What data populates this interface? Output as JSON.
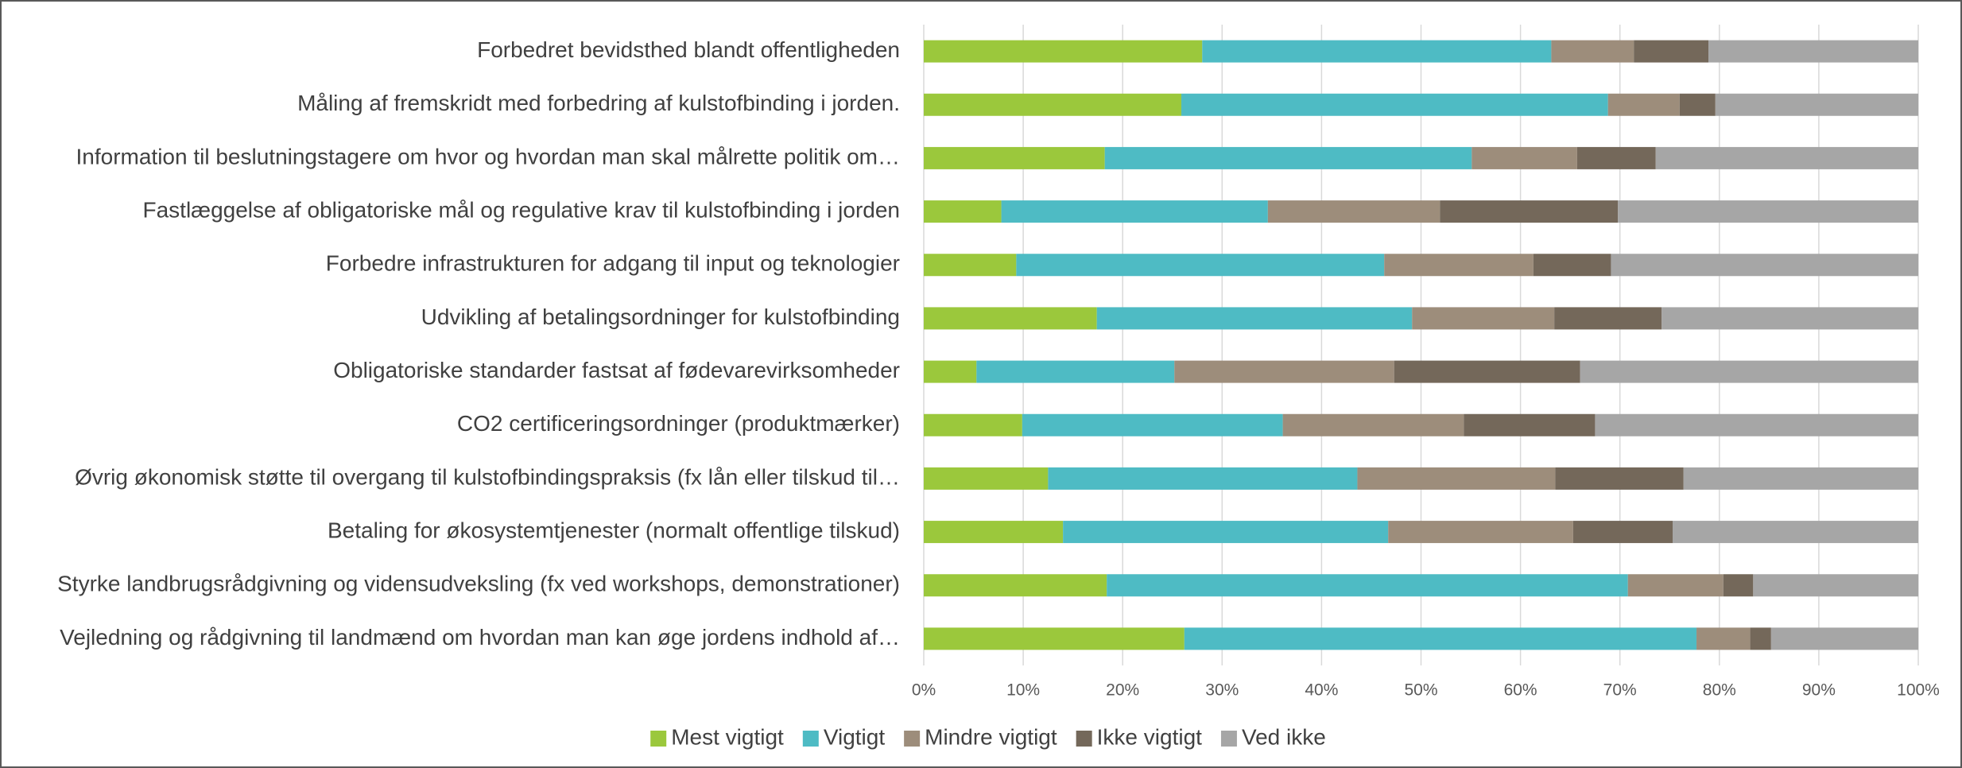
{
  "chart_data": {
    "type": "stacked_bar_horizontal",
    "categories": [
      "Forbedret bevidsthed blandt offentligheden",
      "Måling af fremskridt med forbedring af kulstofbinding i jorden.",
      "Information til beslutningstagere om hvor og hvordan man skal målrette politik om…",
      "Fastlæggelse af obligatoriske mål og regulative krav til kulstofbinding i jorden",
      "Forbedre infrastrukturen for adgang til input og teknologier",
      "Udvikling af betalingsordninger for kulstofbinding",
      "Obligatoriske standarder fastsat af fødevarevirksomheder",
      "CO2 certificeringsordninger (produktmærker)",
      "Øvrig økonomisk støtte til overgang til kulstofbindingspraksis (fx lån eller tilskud til…",
      "Betaling for økosystemtjenester (normalt offentlige tilskud)",
      "Styrke landbrugsrådgivning og vidensudveksling (fx ved workshops, demonstrationer)",
      "Vejledning og rådgivning til landmænd om hvordan man kan øge jordens indhold af…"
    ],
    "series": [
      {
        "name": "Mest vigtigt",
        "color": "#9bc83c",
        "values": [
          28.0,
          25.9,
          18.2,
          7.8,
          9.3,
          17.4,
          5.3,
          9.9,
          12.5,
          14.0,
          18.4,
          26.2
        ]
      },
      {
        "name": "Vigtigt",
        "color": "#4ebbc4",
        "values": [
          35.1,
          42.9,
          36.9,
          26.8,
          37.0,
          31.7,
          19.9,
          26.2,
          31.1,
          32.7,
          52.4,
          51.5
        ]
      },
      {
        "name": "Mindre vigtigt",
        "color": "#9d8d7b",
        "values": [
          8.3,
          7.2,
          10.6,
          17.3,
          15.0,
          14.3,
          22.1,
          18.2,
          19.9,
          18.6,
          9.6,
          5.4
        ]
      },
      {
        "name": "Ikke vigtigt",
        "color": "#74685a",
        "values": [
          7.5,
          3.6,
          7.9,
          17.9,
          7.8,
          10.8,
          18.7,
          13.2,
          12.9,
          10.0,
          3.0,
          2.1
        ]
      },
      {
        "name": "Ved ikke",
        "color": "#a6a6a6",
        "values": [
          21.1,
          20.4,
          26.4,
          30.2,
          30.9,
          25.8,
          34.0,
          32.5,
          23.6,
          24.7,
          16.6,
          14.8
        ]
      }
    ],
    "xlim": [
      0,
      100
    ],
    "xticks": [
      {
        "value": 0,
        "label": "0%"
      },
      {
        "value": 10,
        "label": "10%"
      },
      {
        "value": 20,
        "label": "20%"
      },
      {
        "value": 30,
        "label": "30%"
      },
      {
        "value": 40,
        "label": "40%"
      },
      {
        "value": 50,
        "label": "50%"
      },
      {
        "value": 60,
        "label": "60%"
      },
      {
        "value": 70,
        "label": "70%"
      },
      {
        "value": 80,
        "label": "80%"
      },
      {
        "value": 90,
        "label": "90%"
      },
      {
        "value": 100,
        "label": "100%"
      }
    ],
    "grid": true,
    "legend": "bottom"
  }
}
